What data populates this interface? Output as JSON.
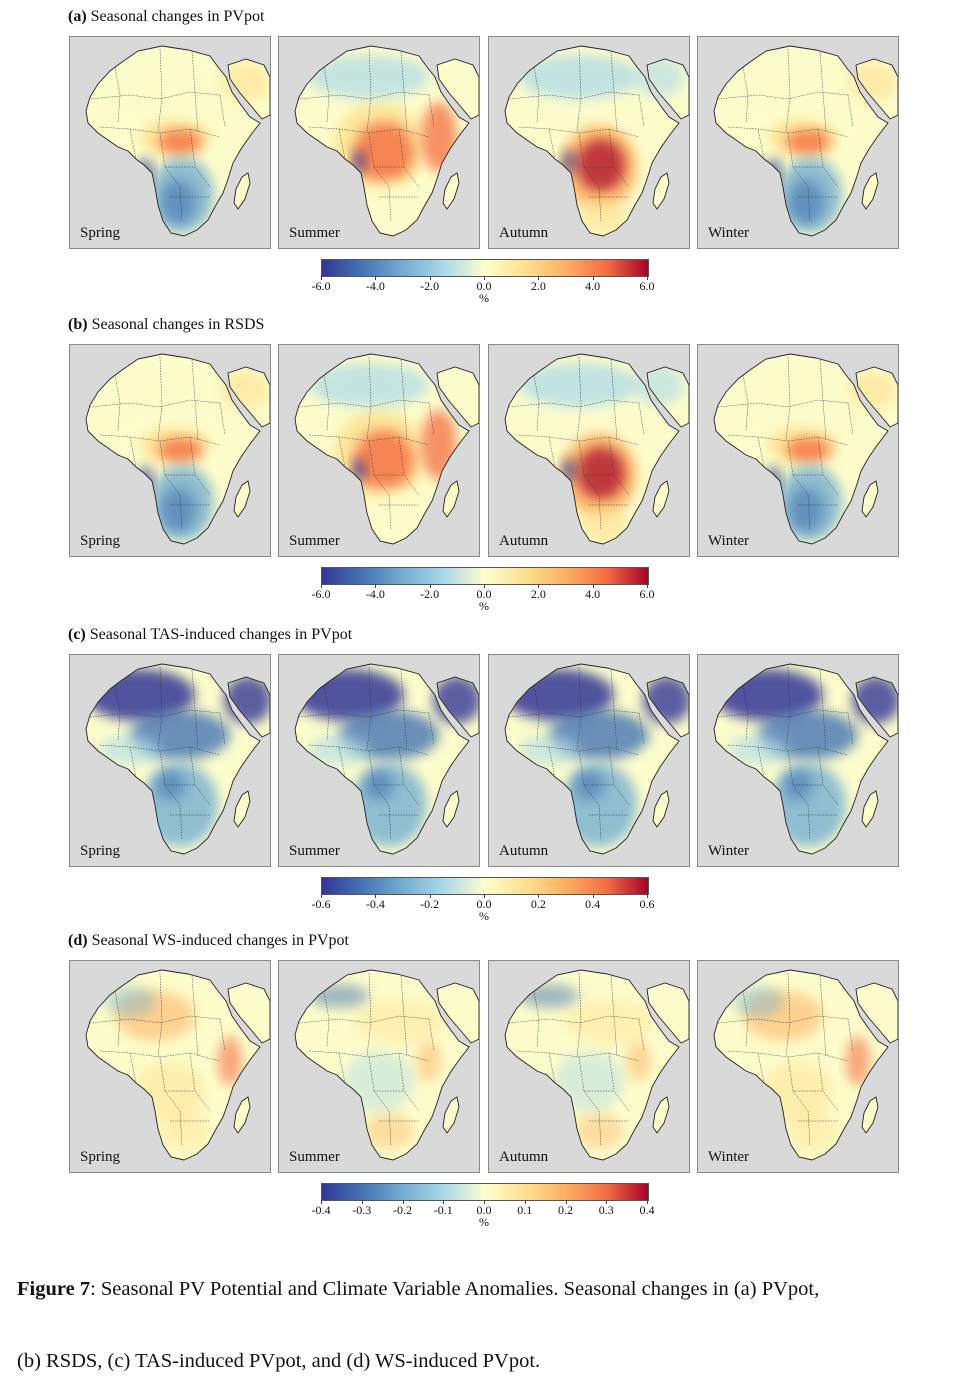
{
  "figure": {
    "panels": [
      {
        "id": "a",
        "tag": "(a)",
        "title": "Seasonal changes in PVpot",
        "seasons": [
          "Spring",
          "Summer",
          "Autumn",
          "Winter"
        ],
        "colorbar": {
          "ticks": [
            "-6.0",
            "-4.0",
            "-2.0",
            "0.0",
            "2.0",
            "4.0",
            "6.0"
          ],
          "unit": "%",
          "range": [
            -6,
            6
          ]
        },
        "map_pattern": [
          "warm-mixed",
          "warm-east",
          "warm-center",
          "warm-mixed"
        ]
      },
      {
        "id": "b",
        "tag": "(b)",
        "title": "Seasonal changes in RSDS",
        "seasons": [
          "Spring",
          "Summer",
          "Autumn",
          "Winter"
        ],
        "colorbar": {
          "ticks": [
            "-6.0",
            "-4.0",
            "-2.0",
            "0.0",
            "2.0",
            "4.0",
            "6.0"
          ],
          "unit": "%",
          "range": [
            -6,
            6
          ]
        },
        "map_pattern": [
          "warm-mixed",
          "warm-east",
          "warm-center",
          "warm-mixed"
        ]
      },
      {
        "id": "c",
        "tag": "(c)",
        "title": "Seasonal TAS-induced changes in PVpot",
        "seasons": [
          "Spring",
          "Summer",
          "Autumn",
          "Winter"
        ],
        "colorbar": {
          "ticks": [
            "-0.6",
            "-0.4",
            "-0.2",
            "0.0",
            "0.2",
            "0.4",
            "0.6"
          ],
          "unit": "%",
          "range": [
            -0.6,
            0.6
          ]
        },
        "map_pattern": [
          "cool",
          "cool",
          "cool",
          "cool"
        ]
      },
      {
        "id": "d",
        "tag": "(d)",
        "title": "Seasonal WS-induced changes in PVpot",
        "seasons": [
          "Spring",
          "Summer",
          "Autumn",
          "Winter"
        ],
        "colorbar": {
          "ticks": [
            "-0.4",
            "-0.3",
            "-0.2",
            "-0.1",
            "0.0",
            "0.1",
            "0.2",
            "0.3",
            "0.4"
          ],
          "unit": "%",
          "range": [
            -0.4,
            0.4
          ]
        },
        "map_pattern": [
          "warm-light",
          "light-mixed",
          "light-mixed",
          "warm-light"
        ]
      }
    ],
    "colors": {
      "diverging": [
        "#313695",
        "#4575b4",
        "#74add1",
        "#abd9e9",
        "#fdfdcc",
        "#fee090",
        "#fdae61",
        "#f46d43",
        "#a50026"
      ],
      "background": "#d9d9d9",
      "ocean": "#d9d9d9"
    }
  },
  "caption": {
    "label": "Figure 7",
    "line1": ": Seasonal PV Potential and Climate Variable Anomalies. Seasonal changes in (a) PVpot,",
    "line2": "(b) RSDS, (c) TAS-induced PVpot, and (d) WS-induced PVpot."
  }
}
